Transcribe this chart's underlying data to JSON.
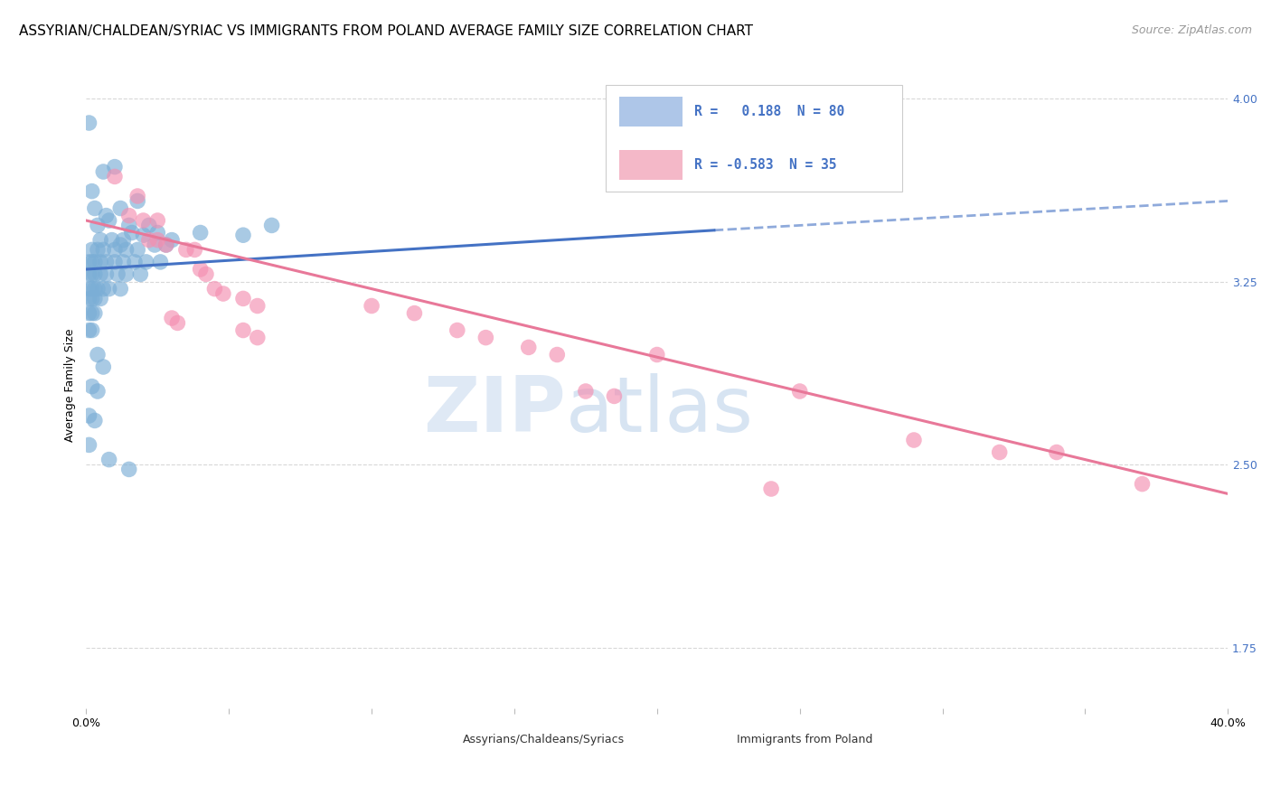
{
  "title": "ASSYRIAN/CHALDEAN/SYRIAC VS IMMIGRANTS FROM POLAND AVERAGE FAMILY SIZE CORRELATION CHART",
  "source": "Source: ZipAtlas.com",
  "ylabel": "Average Family Size",
  "xlim": [
    0.0,
    0.4
  ],
  "ylim": [
    1.5,
    4.15
  ],
  "yticks_right": [
    4.0,
    3.25,
    2.5,
    1.75
  ],
  "xtick_positions": [
    0.0,
    0.05,
    0.1,
    0.15,
    0.2,
    0.25,
    0.3,
    0.35,
    0.4
  ],
  "xtick_labels": [
    "0.0%",
    "",
    "",
    "",
    "",
    "",
    "",
    "",
    "40.0%"
  ],
  "blue_scatter": [
    [
      0.001,
      3.9
    ],
    [
      0.002,
      3.62
    ],
    [
      0.006,
      3.7
    ],
    [
      0.01,
      3.72
    ],
    [
      0.003,
      3.55
    ],
    [
      0.007,
      3.52
    ],
    [
      0.012,
      3.55
    ],
    [
      0.018,
      3.58
    ],
    [
      0.004,
      3.48
    ],
    [
      0.008,
      3.5
    ],
    [
      0.015,
      3.48
    ],
    [
      0.022,
      3.48
    ],
    [
      0.005,
      3.42
    ],
    [
      0.009,
      3.42
    ],
    [
      0.013,
      3.42
    ],
    [
      0.016,
      3.45
    ],
    [
      0.02,
      3.44
    ],
    [
      0.025,
      3.45
    ],
    [
      0.002,
      3.38
    ],
    [
      0.004,
      3.38
    ],
    [
      0.006,
      3.38
    ],
    [
      0.01,
      3.38
    ],
    [
      0.014,
      3.38
    ],
    [
      0.018,
      3.38
    ],
    [
      0.024,
      3.4
    ],
    [
      0.028,
      3.4
    ],
    [
      0.001,
      3.33
    ],
    [
      0.002,
      3.33
    ],
    [
      0.003,
      3.33
    ],
    [
      0.005,
      3.33
    ],
    [
      0.007,
      3.33
    ],
    [
      0.01,
      3.33
    ],
    [
      0.013,
      3.33
    ],
    [
      0.017,
      3.33
    ],
    [
      0.021,
      3.33
    ],
    [
      0.026,
      3.33
    ],
    [
      0.001,
      3.28
    ],
    [
      0.002,
      3.28
    ],
    [
      0.003,
      3.28
    ],
    [
      0.005,
      3.28
    ],
    [
      0.007,
      3.28
    ],
    [
      0.011,
      3.28
    ],
    [
      0.014,
      3.28
    ],
    [
      0.019,
      3.28
    ],
    [
      0.001,
      3.22
    ],
    [
      0.002,
      3.22
    ],
    [
      0.003,
      3.22
    ],
    [
      0.004,
      3.22
    ],
    [
      0.006,
      3.22
    ],
    [
      0.008,
      3.22
    ],
    [
      0.012,
      3.22
    ],
    [
      0.001,
      3.18
    ],
    [
      0.002,
      3.18
    ],
    [
      0.003,
      3.18
    ],
    [
      0.005,
      3.18
    ],
    [
      0.001,
      3.12
    ],
    [
      0.002,
      3.12
    ],
    [
      0.003,
      3.12
    ],
    [
      0.001,
      3.05
    ],
    [
      0.002,
      3.05
    ],
    [
      0.004,
      2.95
    ],
    [
      0.006,
      2.9
    ],
    [
      0.002,
      2.82
    ],
    [
      0.004,
      2.8
    ],
    [
      0.001,
      2.7
    ],
    [
      0.003,
      2.68
    ],
    [
      0.001,
      2.58
    ],
    [
      0.012,
      3.4
    ],
    [
      0.03,
      3.42
    ],
    [
      0.04,
      3.45
    ],
    [
      0.055,
      3.44
    ],
    [
      0.065,
      3.48
    ],
    [
      0.008,
      2.52
    ],
    [
      0.015,
      2.48
    ]
  ],
  "pink_scatter": [
    [
      0.01,
      3.68
    ],
    [
      0.018,
      3.6
    ],
    [
      0.015,
      3.52
    ],
    [
      0.02,
      3.5
    ],
    [
      0.025,
      3.5
    ],
    [
      0.022,
      3.42
    ],
    [
      0.025,
      3.42
    ],
    [
      0.028,
      3.4
    ],
    [
      0.035,
      3.38
    ],
    [
      0.038,
      3.38
    ],
    [
      0.04,
      3.3
    ],
    [
      0.042,
      3.28
    ],
    [
      0.045,
      3.22
    ],
    [
      0.048,
      3.2
    ],
    [
      0.055,
      3.18
    ],
    [
      0.06,
      3.15
    ],
    [
      0.03,
      3.1
    ],
    [
      0.032,
      3.08
    ],
    [
      0.055,
      3.05
    ],
    [
      0.06,
      3.02
    ],
    [
      0.1,
      3.15
    ],
    [
      0.115,
      3.12
    ],
    [
      0.13,
      3.05
    ],
    [
      0.14,
      3.02
    ],
    [
      0.155,
      2.98
    ],
    [
      0.165,
      2.95
    ],
    [
      0.2,
      2.95
    ],
    [
      0.175,
      2.8
    ],
    [
      0.185,
      2.78
    ],
    [
      0.25,
      2.8
    ],
    [
      0.29,
      2.6
    ],
    [
      0.32,
      2.55
    ],
    [
      0.34,
      2.55
    ],
    [
      0.24,
      2.4
    ],
    [
      0.37,
      2.42
    ]
  ],
  "blue_line": {
    "x0": 0.0,
    "y0": 3.3,
    "x1": 0.22,
    "y1": 3.46,
    "x1_dashed": 0.4,
    "y1_dashed": 3.58
  },
  "pink_line": {
    "x0": 0.0,
    "y0": 3.5,
    "x1": 0.4,
    "y1": 2.38
  },
  "scatter_color_blue": "#7baed6",
  "scatter_color_pink": "#f48fb1",
  "line_color_blue": "#4472c4",
  "line_color_pink": "#e87899",
  "legend_box_color_blue": "#aec6e8",
  "legend_box_color_pink": "#f4b8c8",
  "legend_text_color": "#4472c4",
  "watermark_zip_color": "#c8d8ee",
  "watermark_atlas_color": "#b0c8e8",
  "background_color": "#ffffff",
  "grid_color": "#d8d8d8",
  "title_fontsize": 11,
  "axis_label_fontsize": 9,
  "tick_fontsize": 9,
  "source_fontsize": 9,
  "right_tick_color": "#4472c4"
}
